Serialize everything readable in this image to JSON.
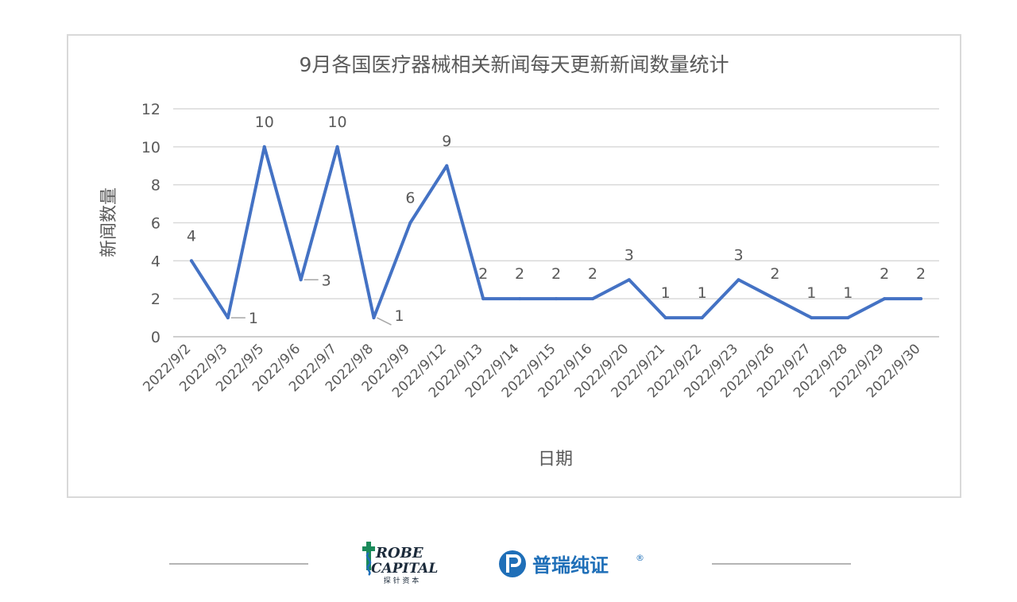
{
  "chart_data": {
    "type": "line",
    "title": "9月各国医疗器械相关新闻每天更新新闻数量统计",
    "xlabel": "日期",
    "ylabel": "新闻数量",
    "categories": [
      "2022/9/2",
      "2022/9/3",
      "2022/9/5",
      "2022/9/6",
      "2022/9/7",
      "2022/9/8",
      "2022/9/9",
      "2022/9/12",
      "2022/9/13",
      "2022/9/14",
      "2022/9/15",
      "2022/9/16",
      "2022/9/20",
      "2022/9/21",
      "2022/9/22",
      "2022/9/23",
      "2022/9/26",
      "2022/9/27",
      "2022/9/28",
      "2022/9/29",
      "2022/9/30"
    ],
    "values": [
      4,
      1,
      10,
      3,
      10,
      1,
      6,
      9,
      2,
      2,
      2,
      2,
      3,
      1,
      1,
      3,
      2,
      1,
      1,
      2,
      2
    ],
    "ylim": [
      0,
      12
    ],
    "yticks": [
      0,
      2,
      4,
      6,
      8,
      10,
      12
    ],
    "ytick_labels": [
      "0",
      "2",
      "4",
      "6",
      "8",
      "10",
      "12"
    ],
    "grid": true,
    "legend": "none",
    "line_color": "#4472c4",
    "data_labels": true
  },
  "footer": {
    "probe_logo": {
      "line1": "ROBE",
      "line2": "CAPITAL",
      "cn": "探 针 资 本",
      "color": "#1a8a5a"
    },
    "puri_logo": {
      "text": "普瑞纯证",
      "reg": "®",
      "color": "#1f6fb8"
    }
  }
}
